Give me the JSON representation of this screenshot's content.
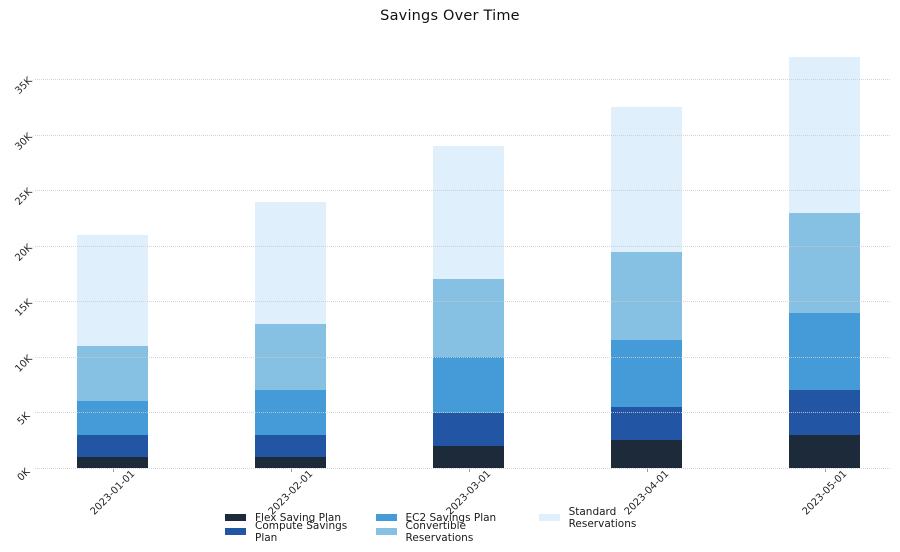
{
  "page": {
    "background": "#ffffff"
  },
  "chart_data": {
    "type": "bar",
    "stacked": true,
    "title": "Savings Over Time",
    "categories": [
      "2023-01-01",
      "2023-02-01",
      "2023-03-01",
      "2023-04-01",
      "2023-05-01"
    ],
    "series": [
      {
        "name": "Flex Saving Plan",
        "color": "#1c2a3a",
        "values": [
          1000,
          1000,
          2000,
          2500,
          3000
        ]
      },
      {
        "name": "Compute Savings Plan",
        "color": "#2255a4",
        "values": [
          2000,
          2000,
          3000,
          3000,
          4000
        ]
      },
      {
        "name": "EC2 Savings Plan",
        "color": "#449bd8",
        "values": [
          3000,
          4000,
          5000,
          6000,
          7000
        ]
      },
      {
        "name": "Convertible Reservations",
        "color": "#86c1e4",
        "values": [
          5000,
          6000,
          7000,
          8000,
          9000
        ]
      },
      {
        "name": "Standard Reservations",
        "color": "#dfeffb",
        "values": [
          10000,
          11000,
          12000,
          13000,
          14000
        ]
      }
    ],
    "stack_totals": [
      21000,
      24000,
      29000,
      32500,
      37000
    ],
    "xlabel": "",
    "ylabel": "",
    "ylim": [
      0,
      38100
    ],
    "y_ticks": [
      {
        "value": 0,
        "label": "0K"
      },
      {
        "value": 5000,
        "label": "5K"
      },
      {
        "value": 10000,
        "label": "10K"
      },
      {
        "value": 15000,
        "label": "15K"
      },
      {
        "value": 20000,
        "label": "20K"
      },
      {
        "value": 25000,
        "label": "25K"
      },
      {
        "value": 30000,
        "label": "30K"
      },
      {
        "value": 35000,
        "label": "35K"
      }
    ],
    "grid": "horizontal-dotted",
    "tick_label_rotation_deg": -45,
    "legend_position": "bottom-center",
    "legend_columns": [
      [
        "Flex Saving Plan",
        "Compute Savings Plan"
      ],
      [
        "EC2 Savings Plan",
        "Convertible Reservations"
      ],
      [
        "Standard Reservations"
      ]
    ]
  },
  "colors": {
    "gridline": "#cdcdcd",
    "tick_text": "#262626",
    "legend_text": "#1a1a1a",
    "title_text": "#111111",
    "tick_mark": "#9b9b9b"
  }
}
